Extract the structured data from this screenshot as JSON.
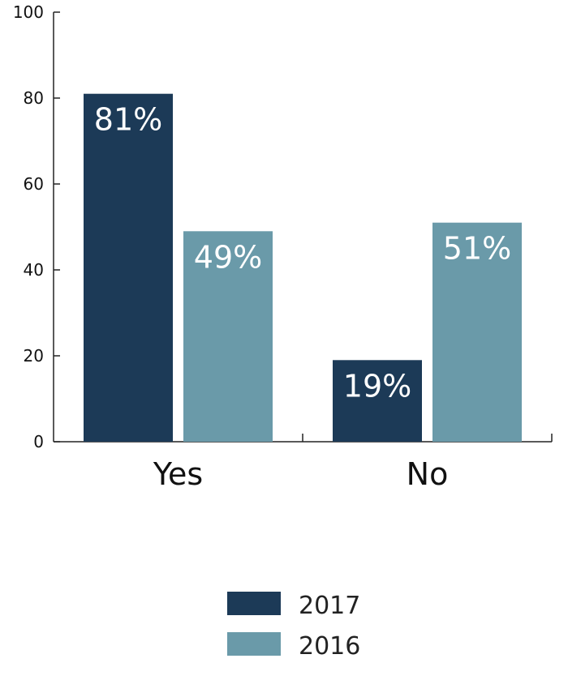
{
  "chart_data": {
    "type": "bar",
    "categories": [
      "Yes",
      "No"
    ],
    "series": [
      {
        "name": "2017",
        "values": [
          81,
          19
        ],
        "labels": [
          "81%",
          "19%"
        ],
        "color": "#1c3a57"
      },
      {
        "name": "2016",
        "values": [
          49,
          51
        ],
        "labels": [
          "49%",
          "51%"
        ],
        "color": "#6a9aa9"
      }
    ],
    "ylim": [
      0,
      100
    ],
    "yticks": [
      0,
      20,
      40,
      60,
      80,
      100
    ],
    "title": "",
    "xlabel": "",
    "ylabel": "",
    "grid": false,
    "legend": "bottom-center"
  }
}
